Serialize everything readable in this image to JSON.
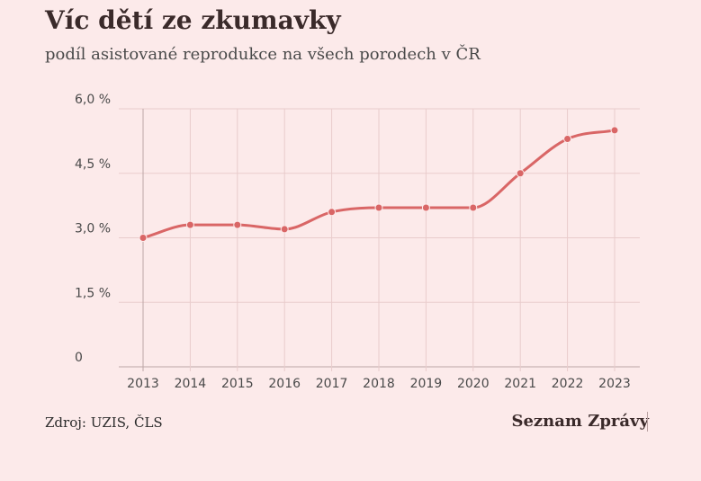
{
  "header": {
    "title": "Víc dětí ze zkumavky",
    "subtitle": "podíl asistované reprodukce na všech porodech v ČR"
  },
  "footer": {
    "source": "Zdroj: UZIS, ČLS",
    "brand": "Seznam Zprávy"
  },
  "colors": {
    "line": "#d96666",
    "grid": "#e9cccc",
    "axis": "#bca6a6"
  },
  "chart_data": {
    "type": "line",
    "title": "Víc dětí ze zkumavky",
    "subtitle": "podíl asistované reprodukce na všech porodech v ČR",
    "xlabel": "",
    "ylabel": "",
    "categories": [
      "2013",
      "2014",
      "2015",
      "2016",
      "2017",
      "2018",
      "2019",
      "2020",
      "2021",
      "2022",
      "2023"
    ],
    "values": [
      3.0,
      3.3,
      3.3,
      3.2,
      3.6,
      3.7,
      3.7,
      3.7,
      4.5,
      5.3,
      5.5
    ],
    "ylim": [
      0,
      6
    ],
    "yticks": [
      0,
      1.5,
      3.0,
      4.5,
      6.0
    ],
    "ytick_labels": [
      "0",
      "1,5 %",
      "3,0 %",
      "4,5 %",
      "6,0 %"
    ],
    "grid": true,
    "legend": "none"
  }
}
